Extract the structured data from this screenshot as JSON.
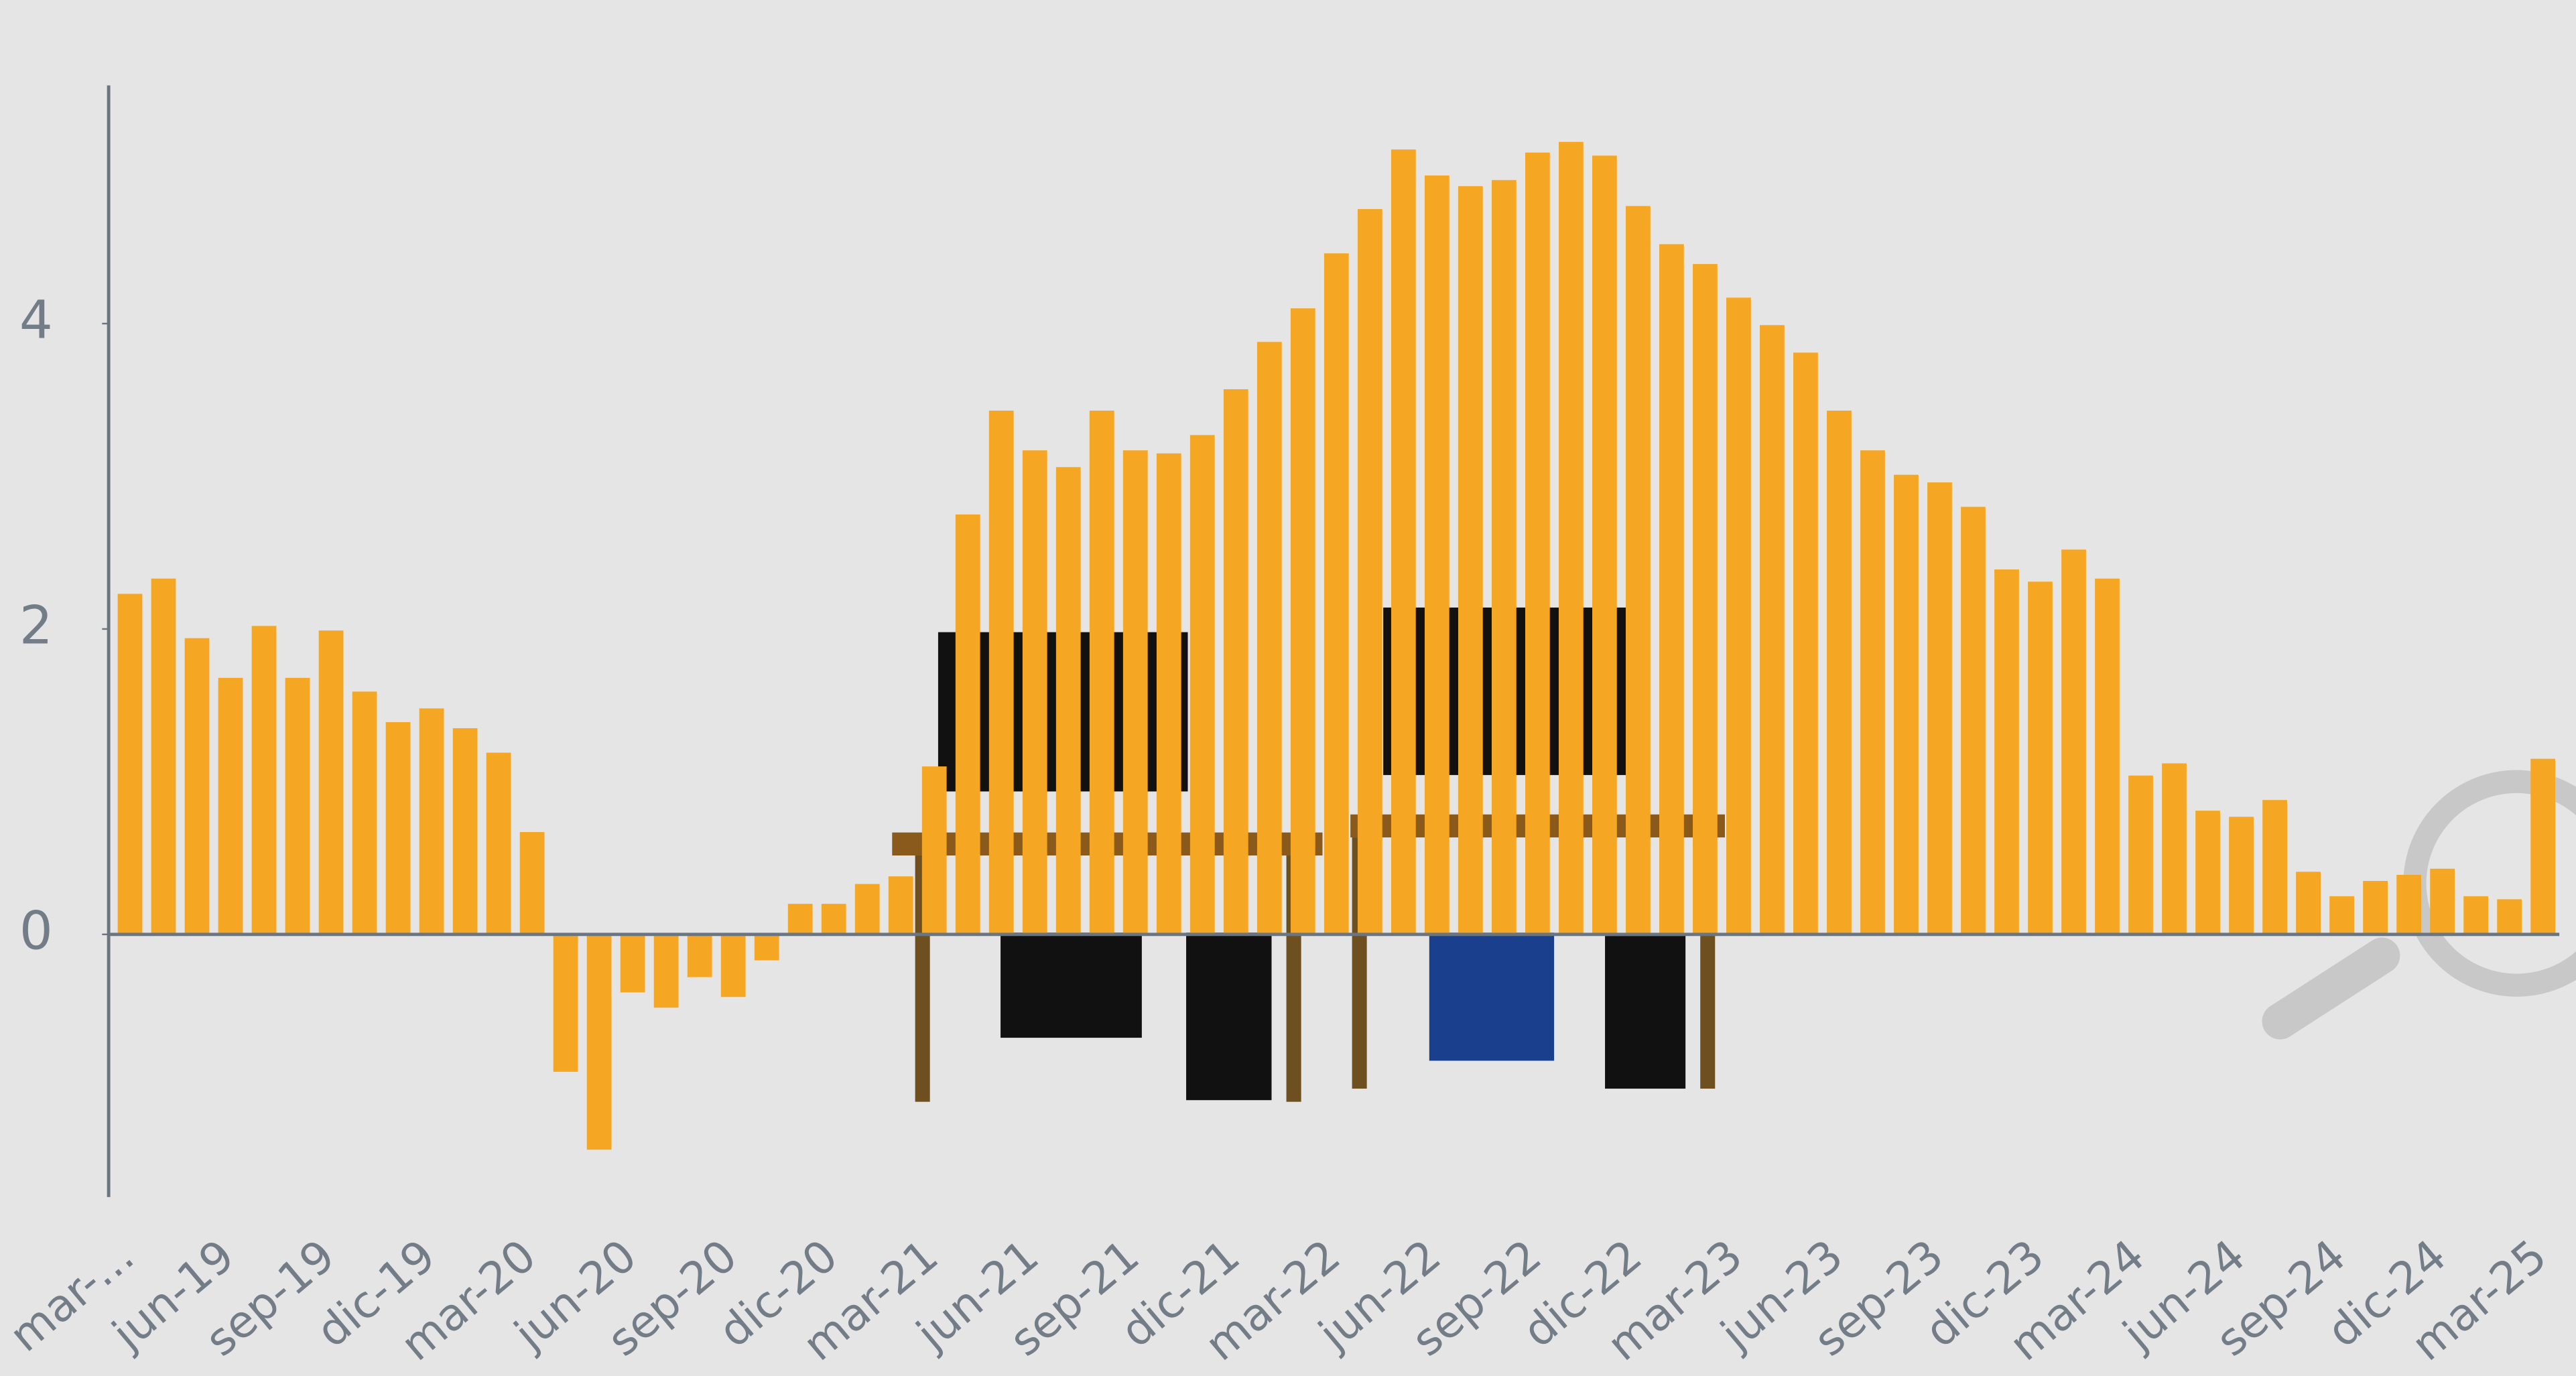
{
  "chart_data": {
    "type": "bar",
    "categories": [
      "mar-...",
      null,
      null,
      "jun-19",
      null,
      null,
      "sep-19",
      null,
      null,
      "dic-19",
      null,
      null,
      "mar-20",
      null,
      null,
      "jun-20",
      null,
      null,
      "sep-20",
      null,
      null,
      "dic-20",
      null,
      null,
      "mar-21",
      null,
      null,
      "jun-21",
      null,
      null,
      "sep-21",
      null,
      null,
      "dic-21",
      null,
      null,
      "mar-22",
      null,
      null,
      "jun-22",
      null,
      null,
      "sep-22",
      null,
      null,
      "dic-22",
      null,
      null,
      "mar-23",
      null,
      null,
      "jun-23",
      null,
      null,
      "sep-23",
      null,
      null,
      "dic-23",
      null,
      null,
      "mar-24",
      null,
      null,
      "jun-24",
      null,
      null,
      "sep-24",
      null,
      null,
      "dic-24",
      null,
      null,
      "mar-25"
    ],
    "values": [
      2.23,
      2.33,
      1.94,
      1.68,
      2.02,
      1.68,
      1.99,
      1.59,
      1.39,
      1.48,
      1.35,
      1.19,
      0.67,
      -0.9,
      -1.41,
      -0.38,
      -0.48,
      -0.28,
      -0.41,
      -0.17,
      0.2,
      0.2,
      0.33,
      0.38,
      1.1,
      2.75,
      3.43,
      3.17,
      3.06,
      3.43,
      3.17,
      3.15,
      3.27,
      3.57,
      3.88,
      4.1,
      4.46,
      4.75,
      5.14,
      4.97,
      4.9,
      4.94,
      5.12,
      5.19,
      5.1,
      4.77,
      4.52,
      4.39,
      4.17,
      3.99,
      3.81,
      3.43,
      3.17,
      3.01,
      2.96,
      2.8,
      2.39,
      2.31,
      2.52,
      2.33,
      1.04,
      1.12,
      0.81,
      0.77,
      0.88,
      0.41,
      0.25,
      0.35,
      0.39,
      0.43,
      0.25,
      0.23,
      1.15
    ],
    "color": "#f5a623",
    "ylim": [
      -1.72,
      5.56
    ],
    "yticks": [
      0,
      2,
      4
    ],
    "grid": false
  }
}
